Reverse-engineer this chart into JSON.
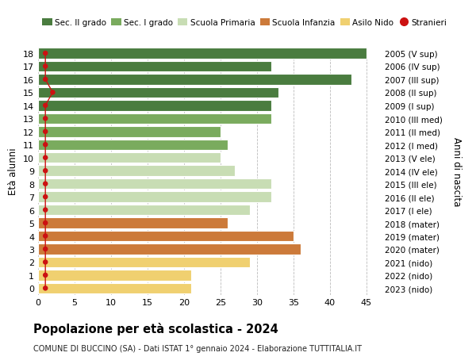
{
  "ages": [
    18,
    17,
    16,
    15,
    14,
    13,
    12,
    11,
    10,
    9,
    8,
    7,
    6,
    5,
    4,
    3,
    2,
    1,
    0
  ],
  "values": [
    45,
    32,
    43,
    33,
    32,
    32,
    25,
    26,
    25,
    27,
    32,
    32,
    29,
    26,
    35,
    36,
    29,
    21,
    21
  ],
  "stranieri": [
    1,
    1,
    1,
    2,
    1,
    1,
    1,
    1,
    1,
    1,
    1,
    1,
    1,
    1,
    1,
    1,
    1,
    1,
    1
  ],
  "right_labels": [
    "2005 (V sup)",
    "2006 (IV sup)",
    "2007 (III sup)",
    "2008 (II sup)",
    "2009 (I sup)",
    "2010 (III med)",
    "2011 (II med)",
    "2012 (I med)",
    "2013 (V ele)",
    "2014 (IV ele)",
    "2015 (III ele)",
    "2016 (II ele)",
    "2017 (I ele)",
    "2018 (mater)",
    "2019 (mater)",
    "2020 (mater)",
    "2021 (nido)",
    "2022 (nido)",
    "2023 (nido)"
  ],
  "bar_colors": [
    "#4a7c3f",
    "#4a7c3f",
    "#4a7c3f",
    "#4a7c3f",
    "#4a7c3f",
    "#7aab5e",
    "#7aab5e",
    "#7aab5e",
    "#c8ddb4",
    "#c8ddb4",
    "#c8ddb4",
    "#c8ddb4",
    "#c8ddb4",
    "#cc7a3a",
    "#cc7a3a",
    "#cc7a3a",
    "#f0d070",
    "#f0d070",
    "#f0d070"
  ],
  "legend_labels": [
    "Sec. II grado",
    "Sec. I grado",
    "Scuola Primaria",
    "Scuola Infanzia",
    "Asilo Nido",
    "Stranieri"
  ],
  "legend_colors": [
    "#4a7c3f",
    "#7aab5e",
    "#c8ddb4",
    "#cc7a3a",
    "#f0d070",
    "#cc1111"
  ],
  "stranieri_color": "#cc1111",
  "title": "Popolazione per età scolastica - 2024",
  "subtitle": "COMUNE DI BUCCINO (SA) - Dati ISTAT 1° gennaio 2024 - Elaborazione TUTTITALIA.IT",
  "xlabel_right": "Anni di nascita",
  "ylabel": "Età alunni",
  "xlim": [
    0,
    47
  ],
  "xticks": [
    0,
    5,
    10,
    15,
    20,
    25,
    30,
    35,
    40,
    45
  ],
  "bg_color": "#ffffff",
  "grid_color": "#bbbbbb"
}
